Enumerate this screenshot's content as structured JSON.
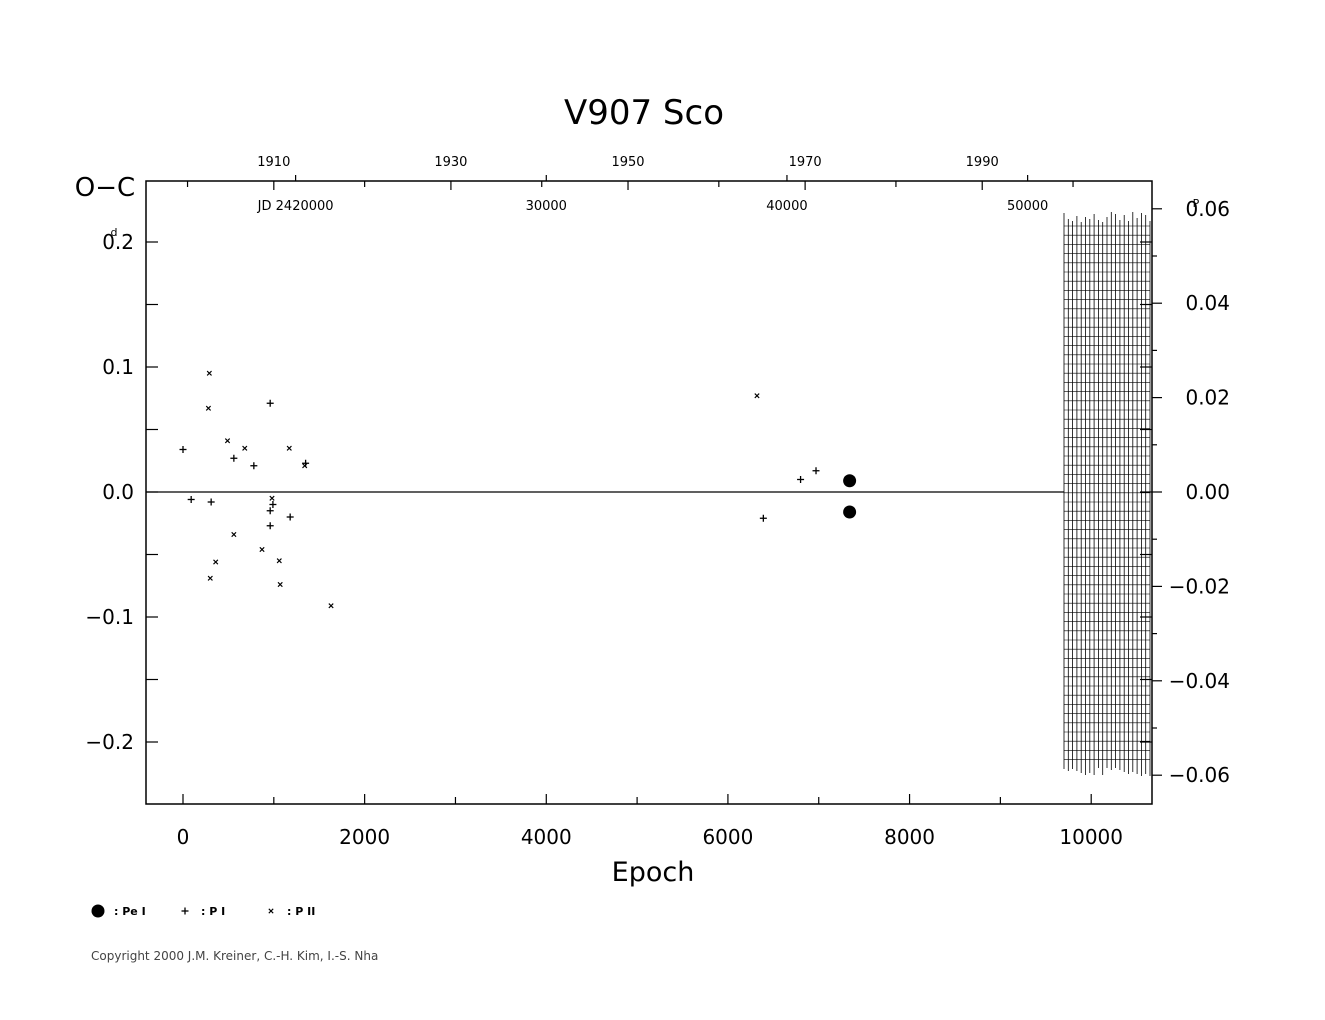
{
  "chart_data": {
    "type": "scatter",
    "title": "V907  Sco",
    "ylabel": "O−C",
    "ylabel_unit": "d",
    "right_unit": "P",
    "xlabel": "Epoch",
    "xlim": [
      -400,
      10700
    ],
    "ylim": [
      -0.25,
      0.25
    ],
    "right_ylim": [
      -0.06,
      0.06
    ],
    "grid": false,
    "x_ticks": [
      0,
      2000,
      4000,
      6000,
      8000,
      10000
    ],
    "y_ticks": [
      {
        "v": 0.2,
        "label": "0.2",
        "sup": "d",
        "supAfter": "0"
      },
      {
        "v": 0.1,
        "label": "0.1"
      },
      {
        "v": 0.0,
        "label": "0.0"
      },
      {
        "v": -0.1,
        "label": "−0.1"
      },
      {
        "v": -0.2,
        "label": "−0.2"
      }
    ],
    "right_ticks": [
      {
        "v": 0.06,
        "label": "0.06",
        "sup": "P",
        "supAfter": "0"
      },
      {
        "v": 0.04,
        "label": "0.04"
      },
      {
        "v": 0.02,
        "label": "0.02"
      },
      {
        "v": 0.0,
        "label": "0.00"
      },
      {
        "v": -0.02,
        "label": "−0.02"
      },
      {
        "v": -0.04,
        "label": "−0.04"
      },
      {
        "v": -0.06,
        "label": "−0.06"
      }
    ],
    "year_ticks": [
      {
        "epoch": 1000,
        "label": "1910"
      },
      {
        "epoch": 2950,
        "label": "1930"
      },
      {
        "epoch": 4900,
        "label": "1950"
      },
      {
        "epoch": 6850,
        "label": "1970"
      },
      {
        "epoch": 8800,
        "label": "1990"
      }
    ],
    "year_minor": [
      50,
      2000,
      3950,
      5900,
      7850,
      9800
    ],
    "jd_ticks": [
      {
        "epoch": 1240,
        "label": "JD  2420000"
      },
      {
        "epoch": 4000,
        "label": "30000"
      },
      {
        "epoch": 6650,
        "label": "40000"
      },
      {
        "epoch": 9300,
        "label": "50000"
      }
    ],
    "legend": [
      {
        "marker": "dot",
        "label": ": Pe I"
      },
      {
        "marker": "plus",
        "label": ": P I"
      },
      {
        "marker": "cross",
        "label": ": P II"
      }
    ],
    "series": [
      {
        "name": "Pe I",
        "marker": "dot",
        "points": [
          [
            7340,
            0.009
          ],
          [
            7340,
            -0.016
          ]
        ]
      },
      {
        "name": "P I",
        "marker": "plus",
        "points": [
          [
            0,
            0.034
          ],
          [
            90,
            -0.006
          ],
          [
            310,
            -0.008
          ],
          [
            560,
            0.027
          ],
          [
            780,
            0.021
          ],
          [
            960,
            0.071
          ],
          [
            960,
            -0.015
          ],
          [
            960,
            -0.027
          ],
          [
            990,
            -0.01
          ],
          [
            1180,
            -0.02
          ],
          [
            1350,
            0.023
          ],
          [
            6390,
            -0.021
          ],
          [
            6800,
            0.01
          ],
          [
            6970,
            0.017
          ]
        ]
      },
      {
        "name": "P II",
        "marker": "cross",
        "points": [
          [
            290,
            0.095
          ],
          [
            280,
            0.067
          ],
          [
            490,
            0.041
          ],
          [
            680,
            0.035
          ],
          [
            1170,
            0.035
          ],
          [
            1340,
            0.021
          ],
          [
            560,
            -0.034
          ],
          [
            870,
            -0.046
          ],
          [
            360,
            -0.056
          ],
          [
            1060,
            -0.055
          ],
          [
            300,
            -0.069
          ],
          [
            1070,
            -0.074
          ],
          [
            980,
            -0.005
          ],
          [
            1630,
            -0.091
          ],
          [
            6320,
            0.077
          ]
        ]
      }
    ]
  },
  "copyright": "Copyright 2000 J.M. Kreiner, C.-H. Kim, I.-S. Nha"
}
